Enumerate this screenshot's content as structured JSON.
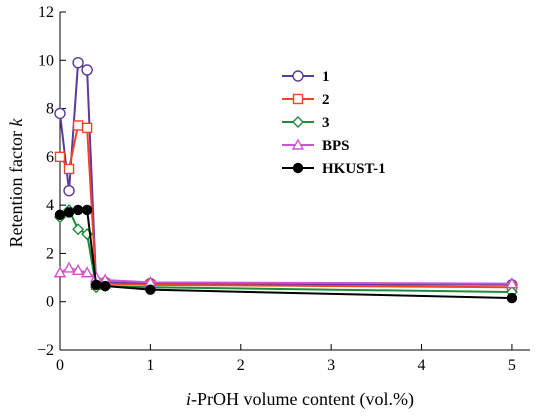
{
  "chart_data": {
    "type": "line",
    "xlabel_italic": "i",
    "xlabel_rest": "-PrOH volume content (vol.%)",
    "ylabel_main": "Retention factor ",
    "ylabel_italic": "k",
    "xlim": [
      0,
      5.2
    ],
    "ylim": [
      -2,
      12
    ],
    "xticks": [
      0,
      1,
      2,
      3,
      4,
      5
    ],
    "yticks": [
      -2,
      0,
      2,
      4,
      6,
      8,
      10,
      12
    ],
    "grid": false,
    "legend_position": "upper-middle",
    "series": [
      {
        "name": "1",
        "color": "#5a3a9a",
        "marker": "circle-open",
        "x": [
          0,
          0.1,
          0.2,
          0.3,
          0.4,
          0.5,
          1,
          5
        ],
        "y": [
          7.8,
          4.6,
          9.9,
          9.6,
          0.7,
          0.8,
          0.75,
          0.7
        ]
      },
      {
        "name": "2",
        "color": "#f0442a",
        "marker": "square-open",
        "x": [
          0,
          0.1,
          0.2,
          0.3,
          0.4,
          0.5,
          1,
          5
        ],
        "y": [
          6.0,
          5.5,
          7.3,
          7.2,
          0.7,
          0.75,
          0.7,
          0.6
        ]
      },
      {
        "name": "3",
        "color": "#1f8a3a",
        "marker": "diamond-open",
        "x": [
          0,
          0.1,
          0.2,
          0.3,
          0.4,
          0.5,
          1,
          5
        ],
        "y": [
          3.5,
          3.8,
          3.0,
          2.8,
          0.6,
          0.65,
          0.6,
          0.4
        ]
      },
      {
        "name": "BPS",
        "color": "#cc55cc",
        "marker": "triangle-open",
        "x": [
          0,
          0.1,
          0.2,
          0.3,
          0.4,
          0.5,
          1,
          5
        ],
        "y": [
          1.2,
          1.4,
          1.3,
          1.2,
          1.0,
          0.9,
          0.8,
          0.75
        ]
      },
      {
        "name": "HKUST-1",
        "color": "#000000",
        "marker": "circle-filled",
        "x": [
          0,
          0.1,
          0.2,
          0.3,
          0.4,
          0.5,
          1,
          5
        ],
        "y": [
          3.6,
          3.7,
          3.8,
          3.8,
          0.7,
          0.65,
          0.5,
          0.15
        ]
      }
    ]
  }
}
